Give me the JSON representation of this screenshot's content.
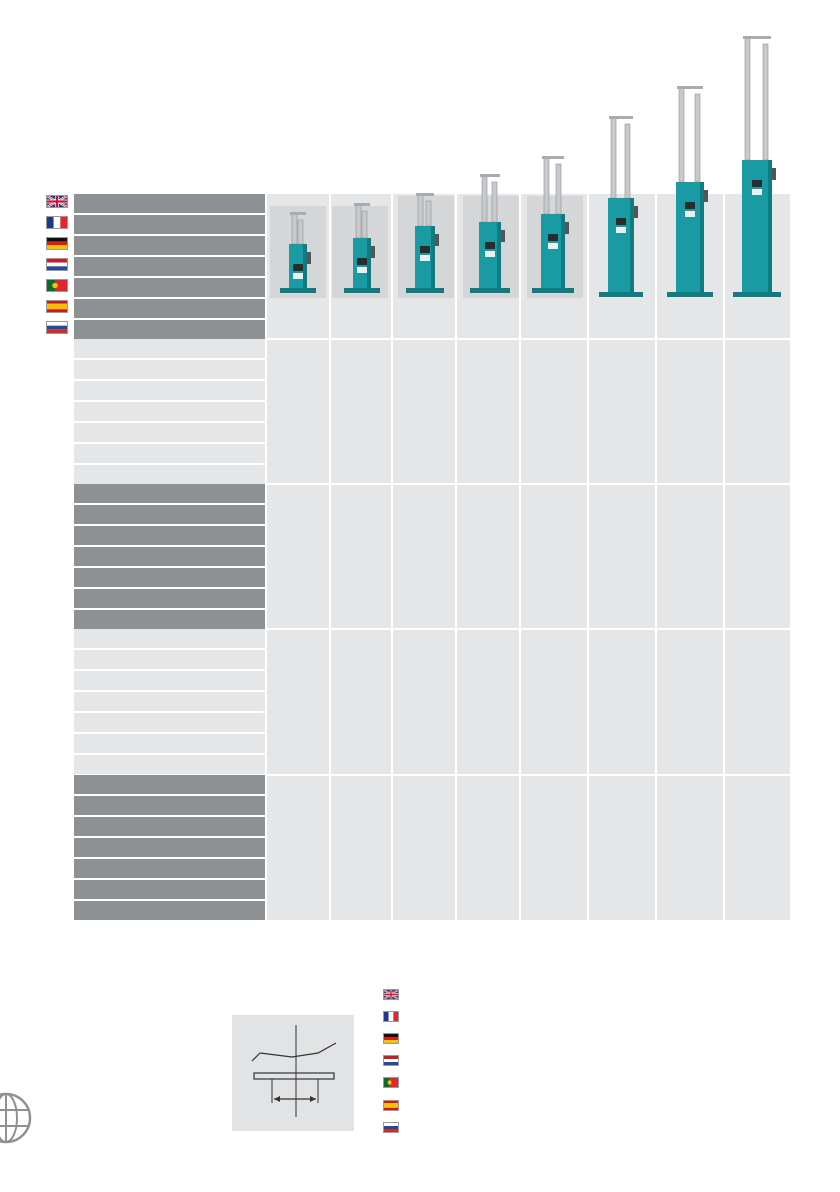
{
  "languages": [
    {
      "code": "en",
      "flag_icon": "uk-flag-icon"
    },
    {
      "code": "fr",
      "flag_icon": "france-flag-icon"
    },
    {
      "code": "de",
      "flag_icon": "germany-flag-icon"
    },
    {
      "code": "nl",
      "flag_icon": "netherlands-flag-icon"
    },
    {
      "code": "pt",
      "flag_icon": "portugal-flag-icon"
    },
    {
      "code": "es",
      "flag_icon": "spain-flag-icon"
    },
    {
      "code": "ru",
      "flag_icon": "russia-flag-icon"
    }
  ],
  "products": [
    {
      "model": "",
      "icon": "hydraulic-jack-1-icon"
    },
    {
      "model": "",
      "icon": "hydraulic-jack-2-icon"
    },
    {
      "model": "",
      "icon": "hydraulic-jack-3-icon"
    },
    {
      "model": "",
      "icon": "hydraulic-jack-4-icon"
    },
    {
      "model": "",
      "icon": "hydraulic-jack-5-icon"
    },
    {
      "model": "",
      "icon": "hydraulic-jack-6-icon"
    },
    {
      "model": "",
      "icon": "hydraulic-jack-7-icon"
    },
    {
      "model": "",
      "icon": "hydraulic-jack-8-icon"
    }
  ],
  "colors": {
    "label_dark": "#8d9194",
    "label_light": "#e5e6e8",
    "column_bg": "#e5e6e8",
    "jack_body": "#1a9aa2",
    "jack_body_dark": "#117b82",
    "steel": "#c7c9cb"
  },
  "diagram": {
    "icon": "measurement-diagram-icon"
  },
  "globe": {
    "icon": "globe-icon"
  }
}
